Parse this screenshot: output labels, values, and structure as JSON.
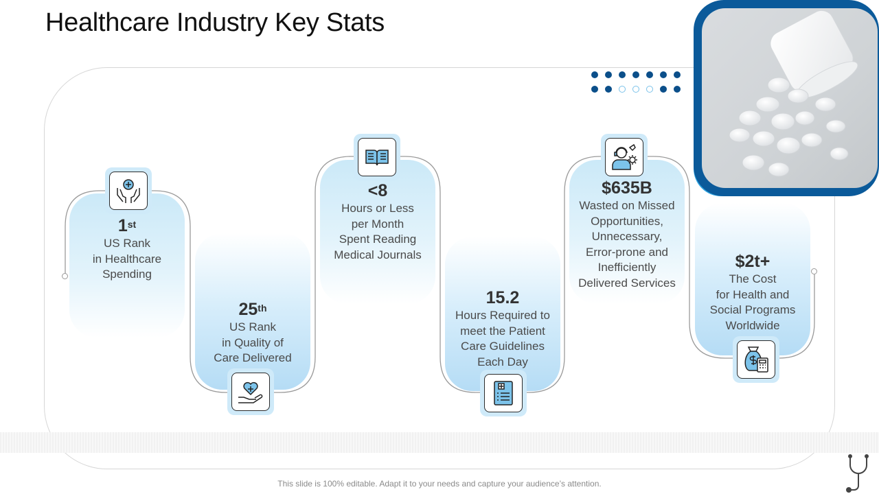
{
  "slide": {
    "title": "Healthcare Industry Key Stats",
    "footer": "This slide is 100% editable. Adapt it to your needs and capture your audience’s attention."
  },
  "stats": [
    {
      "value": "1",
      "suffix": "st",
      "lines": [
        "US Rank",
        "in Healthcare",
        "Spending"
      ],
      "icon": "hands-medical-cross-icon"
    },
    {
      "value": "25",
      "suffix": "th",
      "lines": [
        "US Rank",
        "in Quality of",
        "Care Delivered"
      ],
      "icon": "hand-heart-care-icon"
    },
    {
      "value": "<8",
      "suffix": "",
      "lines": [
        "Hours or Less",
        "per Month",
        "Spent Reading",
        "Medical Journals"
      ],
      "icon": "open-book-icon"
    },
    {
      "value": "15.2",
      "suffix": "",
      "lines": [
        "Hours Required to",
        "meet the Patient",
        "Care Guidelines",
        "Each Day"
      ],
      "icon": "medical-clipboard-icon"
    },
    {
      "value": "$635B",
      "suffix": "",
      "lines": [
        "Wasted on Missed",
        "Opportunities,",
        "Unnecessary,",
        "Error-prone and",
        "Inefficiently",
        "Delivered Services"
      ],
      "icon": "support-agent-gear-icon"
    },
    {
      "value": "$2t+",
      "suffix": "",
      "lines": [
        "The Cost",
        "for Health and",
        "Social Programs",
        "Worldwide"
      ],
      "icon": "money-bag-calculator-icon"
    }
  ],
  "colors": {
    "accent_dark": "#0b5a9a",
    "accent_light": "#2ea3e0",
    "card_light": "#cbe9f8"
  }
}
